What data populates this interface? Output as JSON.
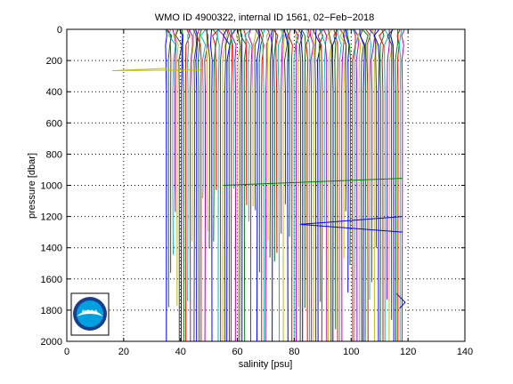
{
  "chart_data": {
    "type": "line",
    "title": "WMO ID 4900322, internal ID 1561, 02−Feb−2018",
    "xlabel": "salinity [psu]",
    "ylabel": "pressure [dbar]",
    "xlim": [
      0,
      140
    ],
    "ylim": [
      2000,
      0
    ],
    "y_reversed": true,
    "xticks": [
      0,
      20,
      40,
      60,
      80,
      100,
      120,
      140
    ],
    "yticks": [
      0,
      200,
      400,
      600,
      800,
      1000,
      1200,
      1400,
      1600,
      1800,
      2000
    ],
    "grid": true,
    "profile_offset_start": 35,
    "profile_offset_end": 118,
    "profile_count": 110,
    "series_colors": [
      "#0000ff",
      "#008000",
      "#ff0000",
      "#00bfbf",
      "#bf00bf",
      "#bfbf00",
      "#404040"
    ],
    "anomalies": [
      {
        "name": "spike-1",
        "color": "#bfbf00",
        "points": [
          [
            35,
            250
          ],
          [
            16,
            265
          ],
          [
            47,
            260
          ]
        ]
      },
      {
        "name": "spike-2",
        "color": "#008000",
        "points": [
          [
            55,
            1000
          ],
          [
            118,
            955
          ]
        ]
      },
      {
        "name": "spike-3",
        "color": "#0000ff",
        "points": [
          [
            118,
            1200
          ],
          [
            82,
            1250
          ],
          [
            118,
            1300
          ]
        ]
      },
      {
        "name": "spike-4",
        "color": "#0000ff",
        "points": [
          [
            116,
            1695
          ],
          [
            119,
            1750
          ],
          [
            117,
            1790
          ]
        ]
      }
    ]
  },
  "logo": {
    "text": "NOAA",
    "colors": {
      "outer": "#1a3e8c",
      "inner": "#00a0e0",
      "bird": "#ffffff"
    }
  }
}
